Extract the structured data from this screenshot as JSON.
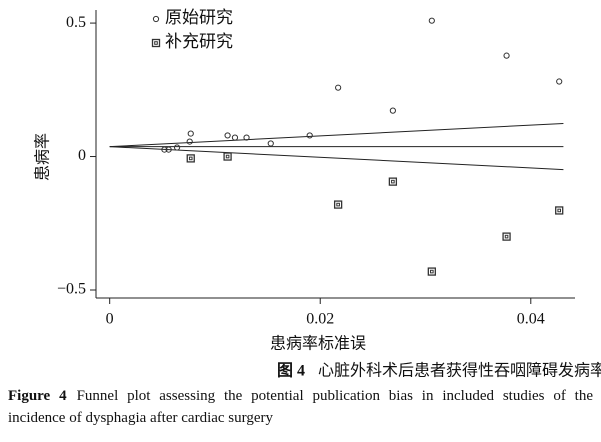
{
  "chart_data": {
    "type": "scatter",
    "x_label": "患病率标准误",
    "y_label": "患病率",
    "xlim": [
      -0.0013,
      0.0442
    ],
    "ylim": [
      -0.53,
      0.549
    ],
    "xticks": [
      0,
      0.02,
      0.04
    ],
    "yticks": [
      {
        "value": -0.5,
        "label": "−0.5"
      },
      0,
      0.5
    ],
    "grid": false,
    "legend": "top-left",
    "series": [
      {
        "name": "原始研究",
        "marker": "circle",
        "color": "#333",
        "x": [
          0.0052,
          0.0056,
          0.0064,
          0.0076,
          0.0077,
          0.0112,
          0.0119,
          0.013,
          0.0153,
          0.019,
          0.0217,
          0.0269,
          0.0306,
          0.0377,
          0.0427
        ],
        "values": [
          0.026,
          0.026,
          0.034,
          0.056,
          0.086,
          0.079,
          0.071,
          0.071,
          0.049,
          0.079,
          0.258,
          0.172,
          0.509,
          0.378,
          0.281
        ]
      },
      {
        "name": "补充研究",
        "marker": "square",
        "color": "#333",
        "x": [
          0.0077,
          0.0112,
          0.0217,
          0.0269,
          0.0306,
          0.0377,
          0.0427
        ],
        "values": [
          -0.007,
          0.0,
          -0.18,
          -0.094,
          -0.431,
          -0.3,
          -0.202
        ]
      }
    ],
    "lines": [
      {
        "x": [
          0,
          0.0431
        ],
        "values": [
          0.037,
          0.037
        ]
      },
      {
        "x": [
          0,
          0.0431
        ],
        "values": [
          0.037,
          0.124
        ]
      },
      {
        "x": [
          0,
          0.0431
        ],
        "values": [
          0.037,
          -0.049
        ]
      }
    ]
  },
  "caption_cn": {
    "label": "图 4",
    "text": "心脏外科术后患者获得性吞咽障碍发病率的漏斗图"
  },
  "caption_en": {
    "label": "Figure 4",
    "text": "Funnel plot assessing the potential publication bias in included studies of the incidence of dysphagia after cardiac surgery"
  }
}
